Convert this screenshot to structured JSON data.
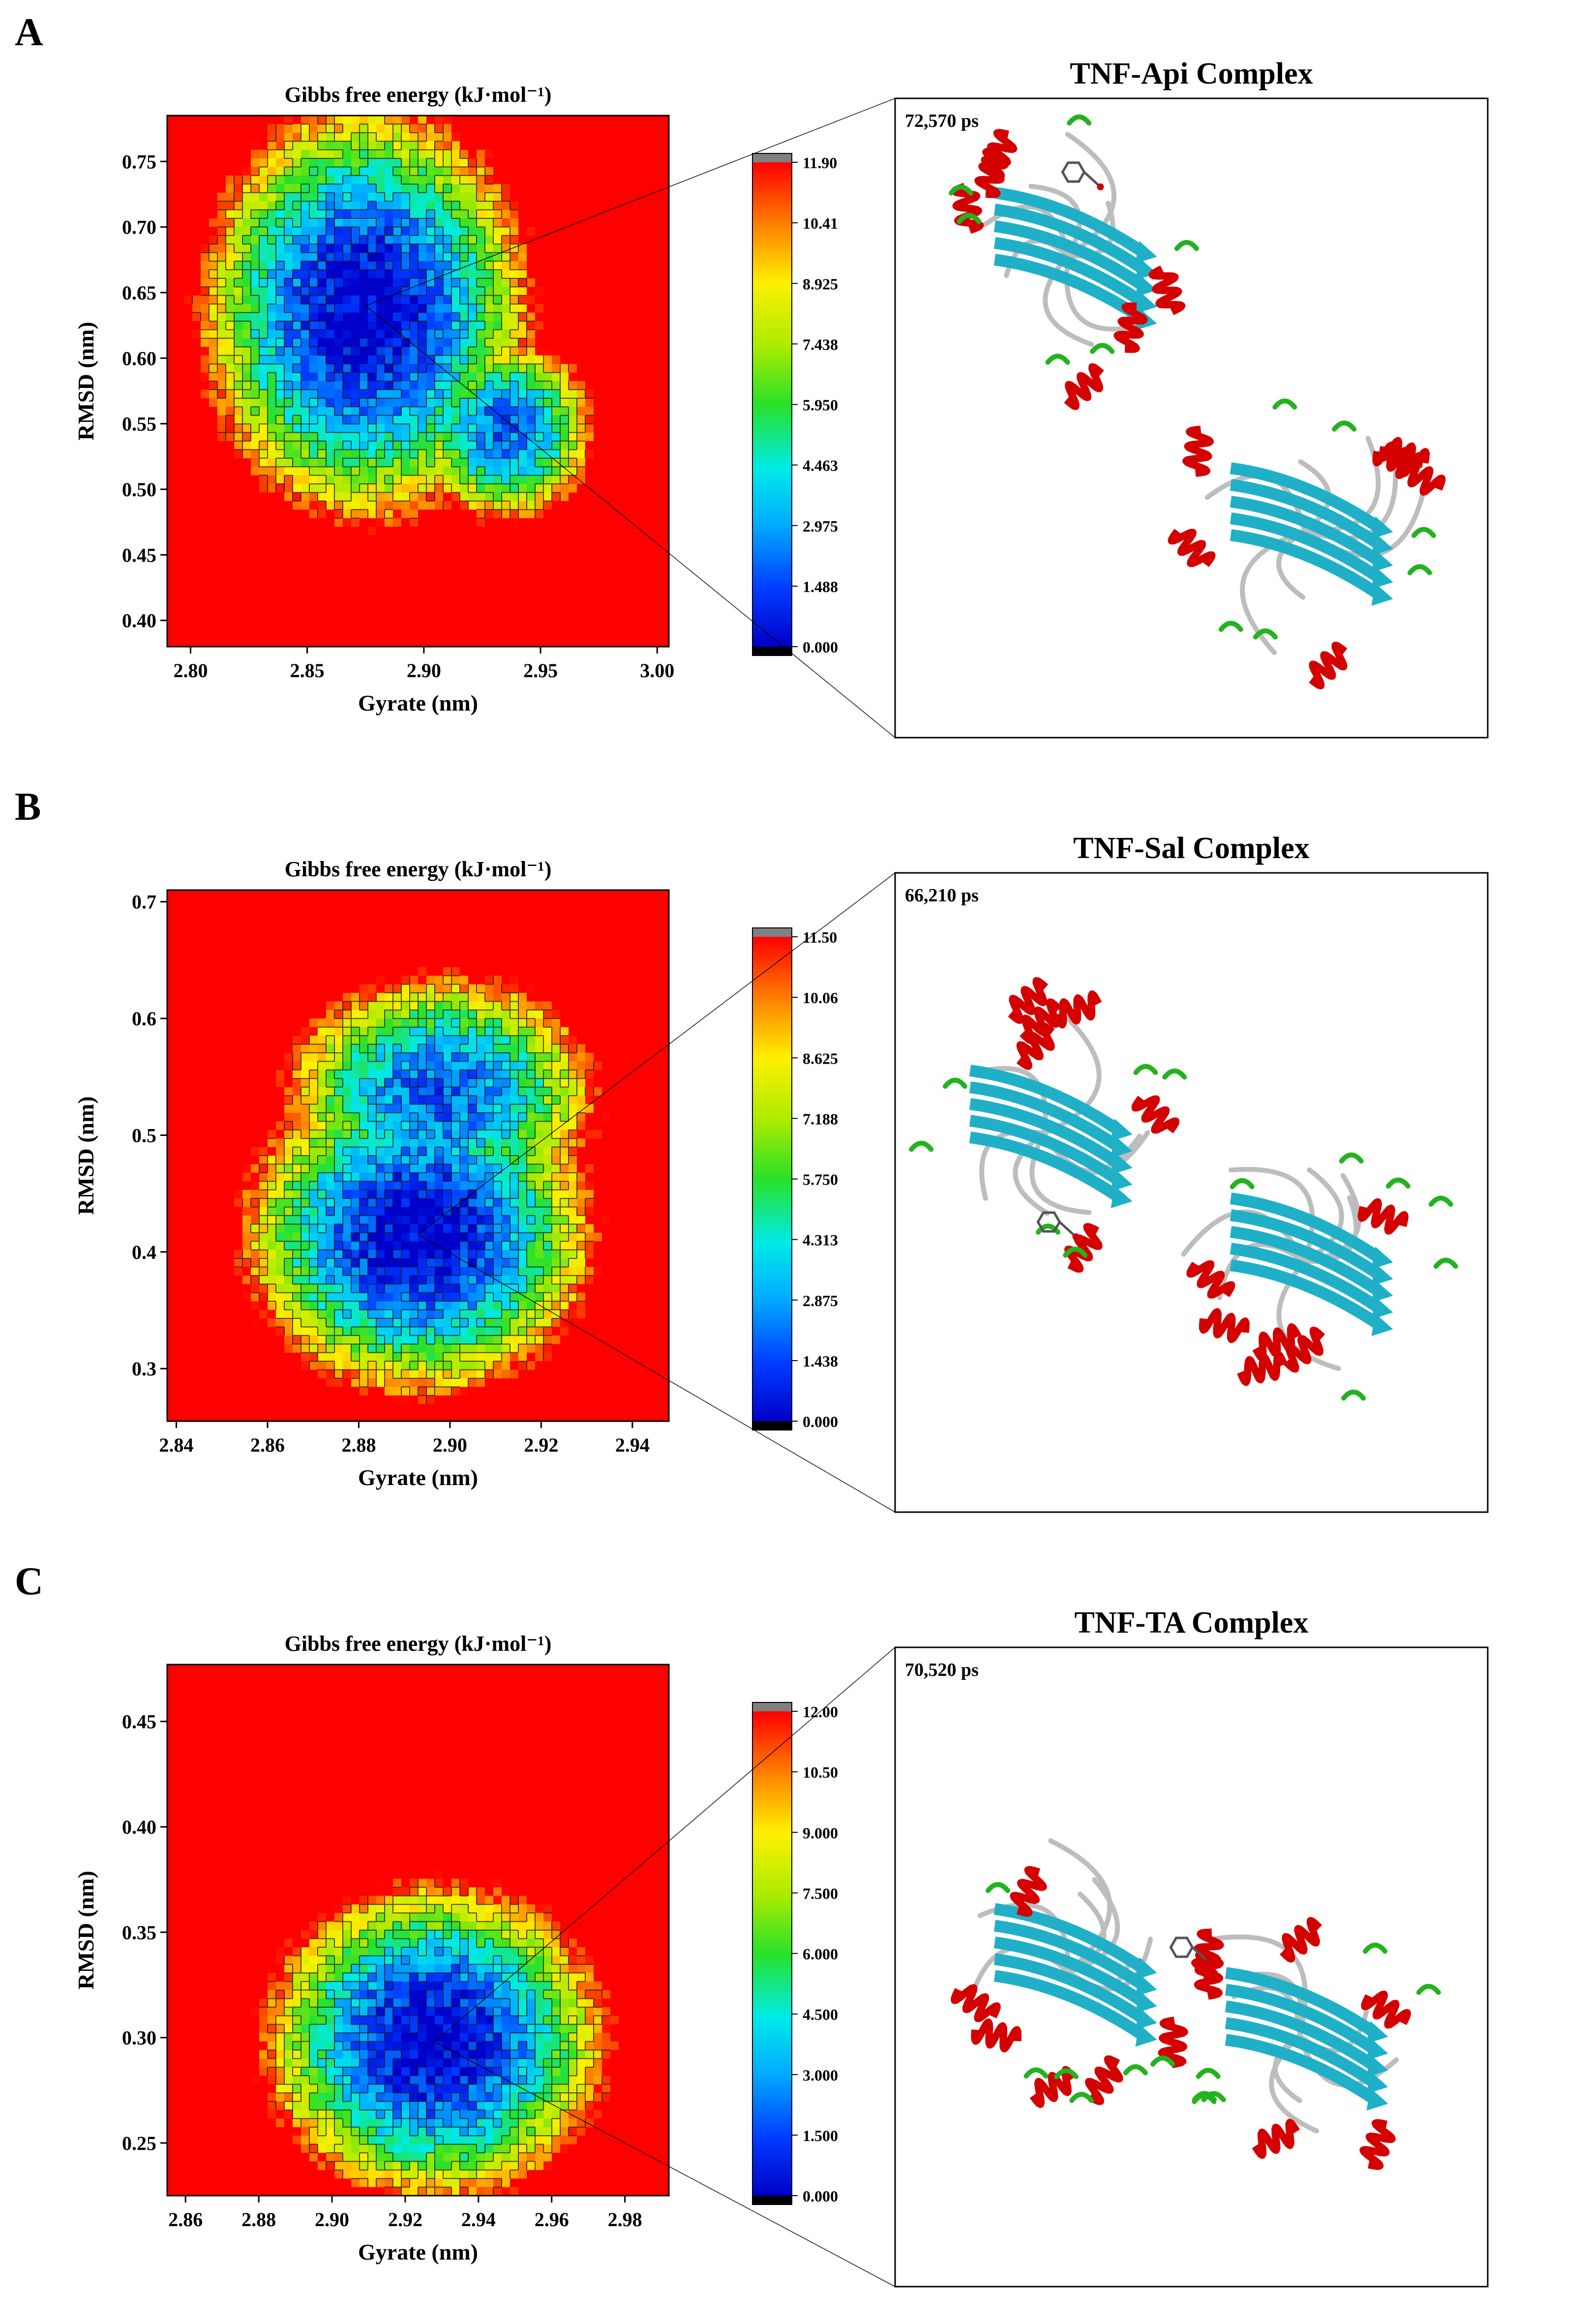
{
  "panels": [
    {
      "letter": "A",
      "chart_data": {
        "type": "heatmap",
        "title": "Gibbs free energy (kJ·mol⁻¹)",
        "xlabel": "Gyrate (nm)",
        "ylabel": "RMSD (nm)",
        "xlim": [
          2.79,
          3.005
        ],
        "ylim": [
          0.38,
          0.785
        ],
        "xticks": [
          {
            "value": 2.8,
            "label": "2.80"
          },
          {
            "value": 2.85,
            "label": "2.85"
          },
          {
            "value": 2.9,
            "label": "2.90"
          },
          {
            "value": 2.95,
            "label": "2.95"
          },
          {
            "value": 3.0,
            "label": "3.00"
          }
        ],
        "yticks": [
          {
            "value": 0.4,
            "label": "0.40"
          },
          {
            "value": 0.45,
            "label": "0.45"
          },
          {
            "value": 0.5,
            "label": "0.50"
          },
          {
            "value": 0.55,
            "label": "0.55"
          },
          {
            "value": 0.6,
            "label": "0.60"
          },
          {
            "value": 0.65,
            "label": "0.65"
          },
          {
            "value": 0.7,
            "label": "0.70"
          },
          {
            "value": 0.75,
            "label": "0.75"
          }
        ],
        "wells": [
          {
            "x": 2.875,
            "y": 0.635,
            "sx": 0.038,
            "sy": 0.085,
            "rot": -0.5,
            "e": 0.0
          },
          {
            "x": 2.935,
            "y": 0.545,
            "sx": 0.022,
            "sy": 0.04,
            "rot": -0.2,
            "e": 2.0
          }
        ],
        "colorbar": {
          "min": 0.0,
          "max": 11.9,
          "ticks": [
            "11.90",
            "10.41",
            "8.925",
            "7.438",
            "5.950",
            "4.463",
            "2.975",
            "1.488",
            "0.000"
          ]
        }
      },
      "structure": {
        "title": "TNF-Api Complex",
        "frame_time": "72,570 ps",
        "zoom_point": {
          "x": 2.875,
          "y": 0.64
        }
      }
    },
    {
      "letter": "B",
      "chart_data": {
        "type": "heatmap",
        "title": "Gibbs free energy (kJ·mol⁻¹)",
        "xlabel": "Gyrate (nm)",
        "ylabel": "RMSD (nm)",
        "xlim": [
          2.838,
          2.948
        ],
        "ylim": [
          0.255,
          0.71
        ],
        "xticks": [
          {
            "value": 2.84,
            "label": "2.84"
          },
          {
            "value": 2.86,
            "label": "2.86"
          },
          {
            "value": 2.88,
            "label": "2.88"
          },
          {
            "value": 2.9,
            "label": "2.90"
          },
          {
            "value": 2.92,
            "label": "2.92"
          },
          {
            "value": 2.94,
            "label": "2.94"
          }
        ],
        "yticks": [
          {
            "value": 0.3,
            "label": "0.3"
          },
          {
            "value": 0.4,
            "label": "0.4"
          },
          {
            "value": 0.5,
            "label": "0.5"
          },
          {
            "value": 0.6,
            "label": "0.6"
          },
          {
            "value": 0.7,
            "label": "0.7"
          }
        ],
        "wells": [
          {
            "x": 2.893,
            "y": 0.415,
            "sx": 0.021,
            "sy": 0.075,
            "rot": 0.2,
            "e": 0.0
          },
          {
            "x": 2.898,
            "y": 0.535,
            "sx": 0.02,
            "sy": 0.06,
            "rot": 0.0,
            "e": 1.8
          }
        ],
        "colorbar": {
          "min": 0.0,
          "max": 11.5,
          "ticks": [
            "11.50",
            "10.06",
            "8.625",
            "7.188",
            "5.750",
            "4.313",
            "2.875",
            "1.438",
            "0.000"
          ]
        }
      },
      "structure": {
        "title": "TNF-Sal Complex",
        "frame_time": "66,210 ps",
        "zoom_point": {
          "x": 2.893,
          "y": 0.415
        }
      }
    },
    {
      "letter": "C",
      "chart_data": {
        "type": "heatmap",
        "title": "Gibbs free energy (kJ·mol⁻¹)",
        "xlabel": "Gyrate (nm)",
        "ylabel": "RMSD (nm)",
        "xlim": [
          2.855,
          2.992
        ],
        "ylim": [
          0.225,
          0.477
        ],
        "xticks": [
          {
            "value": 2.86,
            "label": "2.86"
          },
          {
            "value": 2.88,
            "label": "2.88"
          },
          {
            "value": 2.9,
            "label": "2.90"
          },
          {
            "value": 2.92,
            "label": "2.92"
          },
          {
            "value": 2.94,
            "label": "2.94"
          },
          {
            "value": 2.96,
            "label": "2.96"
          },
          {
            "value": 2.98,
            "label": "2.98"
          }
        ],
        "yticks": [
          {
            "value": 0.25,
            "label": "0.25"
          },
          {
            "value": 0.3,
            "label": "0.30"
          },
          {
            "value": 0.35,
            "label": "0.35"
          },
          {
            "value": 0.4,
            "label": "0.40"
          },
          {
            "value": 0.45,
            "label": "0.45"
          }
        ],
        "wells": [
          {
            "x": 2.928,
            "y": 0.298,
            "sx": 0.025,
            "sy": 0.04,
            "rot": -0.3,
            "e": 0.0
          }
        ],
        "colorbar": {
          "min": 0.0,
          "max": 12.0,
          "ticks": [
            "12.00",
            "10.50",
            "9.000",
            "7.500",
            "6.000",
            "4.500",
            "3.000",
            "1.500",
            "0.000"
          ]
        }
      },
      "structure": {
        "title": "TNF-TA Complex",
        "frame_time": "70,520 ps",
        "zoom_point": {
          "x": 2.928,
          "y": 0.298
        }
      }
    }
  ],
  "colors": {
    "axis": "#000000",
    "contour": "#1a1a1a",
    "helix": "#d40000",
    "strand": "#1fb0c8",
    "turn": "#22b31e",
    "coil": "#bdbdbd",
    "colorbar_top": "#808080",
    "colorbar_bottom": "#000000"
  }
}
